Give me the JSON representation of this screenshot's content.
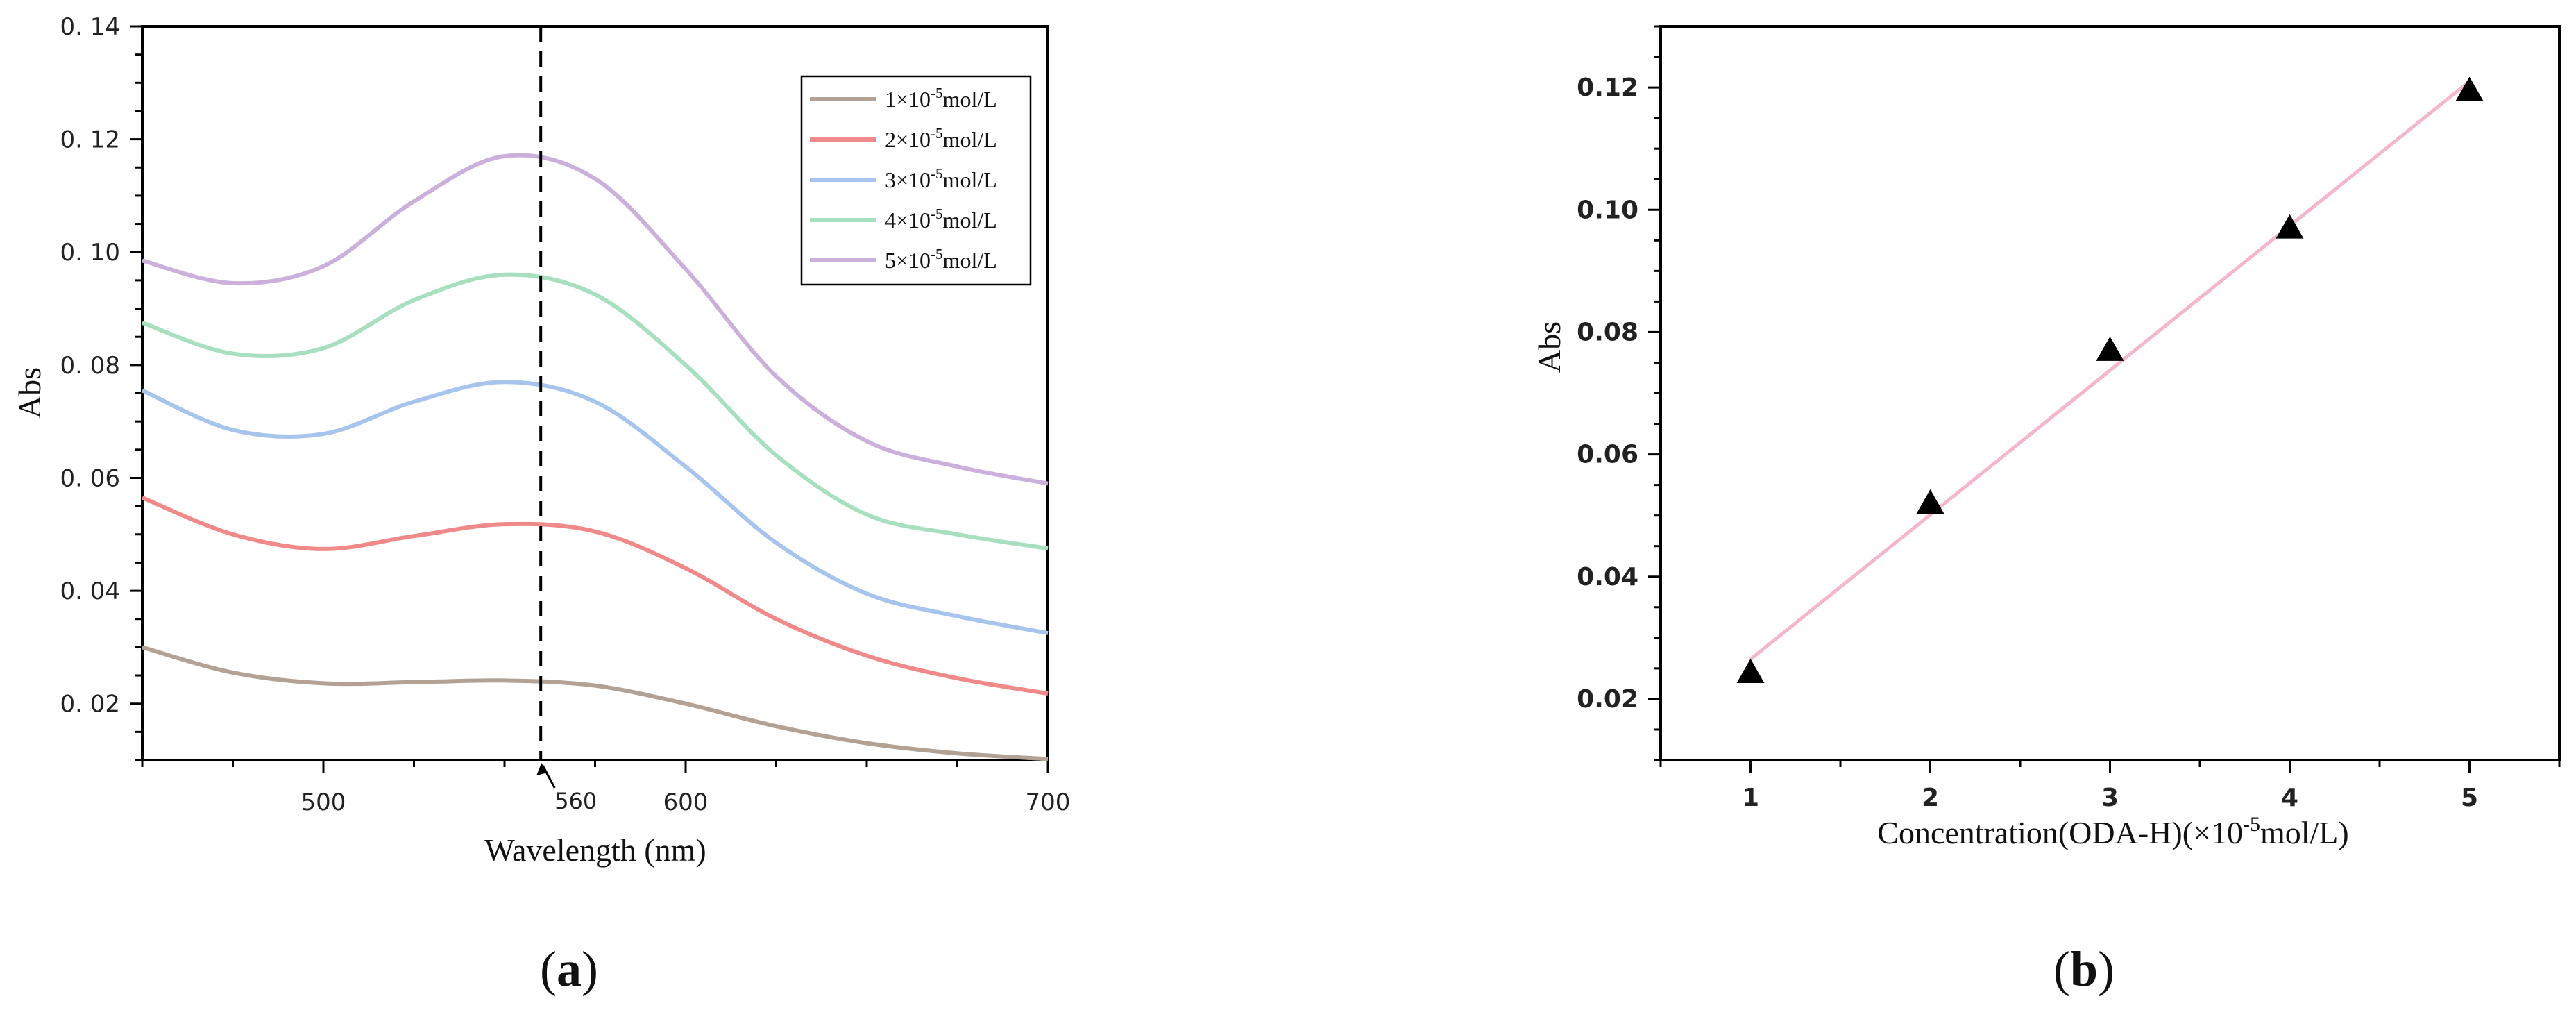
{
  "chart_data": [
    {
      "type": "line",
      "panel_label": "a",
      "xlabel": "Wavelength (nm)",
      "ylabel": "Abs",
      "xlim": [
        450,
        700
      ],
      "ylim": [
        0.01,
        0.14
      ],
      "xticks": [
        500,
        600,
        700
      ],
      "yticks": [
        0.02,
        0.04,
        0.06,
        0.08,
        0.1,
        0.12,
        0.14
      ],
      "ytick_labels": [
        "0. 02",
        "0. 04",
        "0. 06",
        "0. 08",
        "0. 10",
        "0. 12",
        "0. 14"
      ],
      "annotation": {
        "x": 560,
        "label": "560",
        "style": "dashed-vertical"
      },
      "legend": "top-right",
      "x": [
        450,
        475,
        500,
        525,
        550,
        575,
        600,
        625,
        650,
        675,
        700
      ],
      "series": [
        {
          "name": "1×10⁻⁵mol/L",
          "color": "#b3a294",
          "values": [
            0.03,
            0.0255,
            0.0236,
            0.0238,
            0.0241,
            0.0232,
            0.02,
            0.016,
            0.013,
            0.0112,
            0.0102
          ]
        },
        {
          "name": "2×10⁻⁵mol/L",
          "color": "#f08a8a",
          "values": [
            0.0565,
            0.05,
            0.0474,
            0.0497,
            0.0518,
            0.0505,
            0.044,
            0.035,
            0.0285,
            0.0245,
            0.0218
          ]
        },
        {
          "name": "3×10⁻⁵mol/L",
          "color": "#a6c4ec",
          "values": [
            0.0755,
            0.0685,
            0.0678,
            0.0735,
            0.077,
            0.0735,
            0.062,
            0.0485,
            0.0395,
            0.0355,
            0.0325
          ]
        },
        {
          "name": "4×10⁻⁵mol/L",
          "color": "#a8e0bf",
          "values": [
            0.0875,
            0.082,
            0.083,
            0.0915,
            0.096,
            0.0925,
            0.08,
            0.064,
            0.0535,
            0.05,
            0.0475
          ]
        },
        {
          "name": "5×10⁻⁵mol/L",
          "color": "#cbb0dc",
          "values": [
            0.0985,
            0.0945,
            0.0975,
            0.109,
            0.117,
            0.113,
            0.097,
            0.078,
            0.0665,
            0.062,
            0.059
          ]
        }
      ]
    },
    {
      "type": "scatter",
      "panel_label": "b",
      "xlabel": "Concentration(ODA-H)(×10⁻⁵mol/L)",
      "ylabel": "Abs",
      "xlim": [
        0.5,
        5.5
      ],
      "ylim": [
        0.01,
        0.13
      ],
      "xticks": [
        1,
        2,
        3,
        4,
        5
      ],
      "yticks": [
        0.02,
        0.04,
        0.06,
        0.08,
        0.1,
        0.12
      ],
      "ytick_labels": [
        "0.02",
        "0.04",
        "0.06",
        "0.08",
        "0.10",
        "0.12"
      ],
      "points": {
        "x": [
          1,
          2,
          3,
          4,
          5
        ],
        "y": [
          0.0243,
          0.052,
          0.077,
          0.097,
          0.1195
        ],
        "marker": "triangle",
        "color": "#000000"
      },
      "fit_line": {
        "x": [
          1,
          5
        ],
        "y": [
          0.0265,
          0.121
        ],
        "color": "#f4b6cc"
      }
    }
  ]
}
